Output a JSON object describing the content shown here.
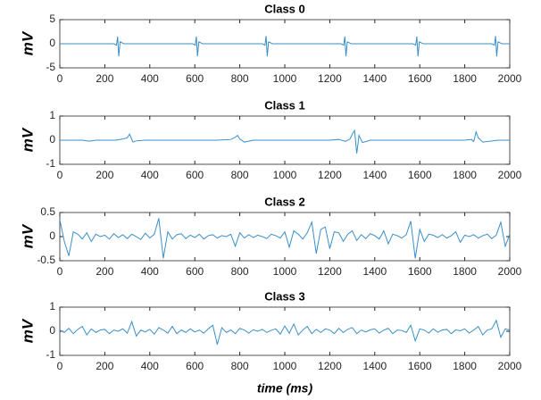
{
  "chart_data": [
    {
      "type": "line",
      "title": "Class 0",
      "ylabel": "mV",
      "color": "#3a8fc9",
      "x": [
        0,
        240,
        252,
        257,
        262,
        268,
        285,
        590,
        602,
        607,
        612,
        618,
        635,
        900,
        912,
        917,
        922,
        928,
        945,
        1250,
        1262,
        1267,
        1272,
        1278,
        1295,
        1570,
        1582,
        1587,
        1592,
        1598,
        1615,
        1920,
        1932,
        1937,
        1942,
        1948,
        1965,
        2000
      ],
      "values": [
        0,
        0,
        -0.3,
        1.5,
        -2.6,
        0.4,
        0,
        0,
        -0.3,
        1.5,
        -2.6,
        0.4,
        0,
        0,
        -0.3,
        1.6,
        -2.6,
        0.4,
        0,
        0,
        -0.3,
        1.5,
        -2.6,
        0.4,
        0,
        0,
        -0.3,
        1.5,
        -2.6,
        0.4,
        0,
        0,
        -0.3,
        1.6,
        -2.6,
        0.4,
        0,
        0
      ],
      "xlim": [
        0,
        2000
      ],
      "xticks": [
        0,
        200,
        400,
        600,
        800,
        1000,
        1200,
        1400,
        1600,
        1800,
        2000
      ],
      "ylim": [
        -5,
        5
      ],
      "yticks": [
        -5,
        0,
        5
      ]
    },
    {
      "type": "line",
      "title": "Class 1",
      "ylabel": "mV",
      "color": "#3a8fc9",
      "x": [
        0,
        100,
        130,
        160,
        250,
        280,
        300,
        310,
        325,
        340,
        380,
        500,
        700,
        760,
        780,
        790,
        800,
        820,
        860,
        1000,
        1200,
        1240,
        1270,
        1290,
        1300,
        1310,
        1320,
        1330,
        1345,
        1380,
        1500,
        1700,
        1800,
        1830,
        1840,
        1850,
        1860,
        1880,
        1950,
        2000
      ],
      "values": [
        0,
        0,
        -0.04,
        0,
        0,
        0.05,
        0.1,
        0.25,
        -0.08,
        -0.03,
        0,
        0,
        0,
        0.03,
        0.12,
        0.2,
        0.05,
        -0.08,
        0,
        0,
        0,
        0.03,
        -0.05,
        0.05,
        0.25,
        0.4,
        -0.55,
        0.2,
        -0.1,
        0,
        0,
        0,
        0,
        0.03,
        -0.05,
        0.35,
        0.1,
        -0.08,
        0,
        0
      ],
      "xlim": [
        0,
        2000
      ],
      "xticks": [
        0,
        200,
        400,
        600,
        800,
        1000,
        1200,
        1400,
        1600,
        1800,
        2000
      ],
      "ylim": [
        -1,
        1
      ],
      "yticks": [
        -1,
        0,
        1
      ]
    },
    {
      "type": "line",
      "title": "Class 2",
      "ylabel": "mV",
      "color": "#3a8fc9",
      "x": [
        0,
        20,
        40,
        60,
        80,
        100,
        120,
        140,
        160,
        180,
        200,
        220,
        240,
        260,
        280,
        300,
        320,
        340,
        360,
        380,
        400,
        420,
        440,
        460,
        480,
        500,
        520,
        540,
        560,
        580,
        600,
        620,
        640,
        660,
        680,
        700,
        720,
        740,
        760,
        780,
        800,
        820,
        840,
        860,
        880,
        900,
        920,
        940,
        960,
        980,
        1000,
        1020,
        1040,
        1060,
        1080,
        1100,
        1120,
        1140,
        1160,
        1180,
        1200,
        1220,
        1240,
        1260,
        1280,
        1300,
        1320,
        1340,
        1360,
        1380,
        1400,
        1420,
        1440,
        1460,
        1480,
        1500,
        1520,
        1540,
        1560,
        1580,
        1600,
        1620,
        1640,
        1660,
        1680,
        1700,
        1720,
        1740,
        1760,
        1780,
        1800,
        1820,
        1840,
        1860,
        1880,
        1900,
        1920,
        1940,
        1960,
        1980,
        2000
      ],
      "values": [
        0.35,
        -0.1,
        -0.4,
        0.1,
        0.05,
        -0.05,
        0.08,
        -0.1,
        0.05,
        0,
        0.03,
        -0.05,
        0.06,
        -0.02,
        0.04,
        -0.04,
        0.05,
        0,
        -0.06,
        0.07,
        -0.03,
        0.05,
        0.38,
        -0.45,
        0.1,
        -0.05,
        0.04,
        0.06,
        -0.04,
        0.03,
        -0.02,
        0.05,
        -0.05,
        0.02,
        0.04,
        -0.03,
        0.02,
        0,
        0.05,
        -0.2,
        0.08,
        -0.03,
        0.04,
        -0.02,
        0.03,
        0,
        -0.04,
        0.05,
        0.02,
        -0.03,
        0.1,
        -0.22,
        0.12,
        0.05,
        -0.05,
        0.08,
        0.3,
        -0.35,
        0.15,
        0.2,
        -0.25,
        0.1,
        0.08,
        -0.1,
        0.05,
        0.12,
        -0.08,
        0.04,
        -0.04,
        0.06,
        0.02,
        -0.05,
        0.12,
        -0.15,
        0.05,
        0.02,
        -0.03,
        0.04,
        0.32,
        -0.45,
        0.15,
        -0.1,
        0.05,
        0.03,
        -0.02,
        0.04,
        -0.03,
        0.02,
        0.1,
        -0.12,
        0.03,
        0,
        0.04,
        -0.03,
        0.02,
        0.05,
        -0.04,
        0.03,
        0.3,
        -0.2,
        0.05
      ],
      "xlim": [
        0,
        2000
      ],
      "xticks": [
        0,
        200,
        400,
        600,
        800,
        1000,
        1200,
        1400,
        1600,
        1800,
        2000
      ],
      "ylim": [
        -0.5,
        0.5
      ],
      "yticks": [
        -0.5,
        0,
        0.5
      ]
    },
    {
      "type": "line",
      "title": "Class 3",
      "ylabel": "mV",
      "xlabel": "time (ms)",
      "color": "#3a8fc9",
      "x": [
        0,
        20,
        40,
        60,
        80,
        100,
        120,
        140,
        160,
        180,
        200,
        220,
        240,
        260,
        280,
        300,
        320,
        340,
        360,
        380,
        400,
        420,
        440,
        460,
        480,
        500,
        520,
        540,
        560,
        580,
        600,
        620,
        640,
        660,
        680,
        700,
        720,
        740,
        760,
        780,
        800,
        820,
        840,
        860,
        880,
        900,
        920,
        940,
        960,
        980,
        1000,
        1020,
        1040,
        1060,
        1080,
        1100,
        1120,
        1140,
        1160,
        1180,
        1200,
        1220,
        1240,
        1260,
        1280,
        1300,
        1320,
        1340,
        1360,
        1380,
        1400,
        1420,
        1440,
        1460,
        1480,
        1500,
        1520,
        1540,
        1560,
        1580,
        1600,
        1620,
        1640,
        1660,
        1680,
        1700,
        1720,
        1740,
        1760,
        1780,
        1800,
        1820,
        1840,
        1860,
        1880,
        1900,
        1920,
        1940,
        1960,
        1980,
        2000
      ],
      "values": [
        0.05,
        -0.05,
        0.12,
        -0.1,
        0.08,
        0.2,
        -0.15,
        0.1,
        -0.05,
        0.05,
        0.08,
        -0.1,
        0.05,
        0,
        0.1,
        -0.08,
        0.4,
        -0.2,
        0.05,
        -0.03,
        0.08,
        -0.12,
        0.15,
        0.05,
        -0.08,
        0.2,
        -0.1,
        0.05,
        -0.05,
        0.1,
        -0.03,
        0.05,
        -0.08,
        0.1,
        0.25,
        -0.55,
        0.15,
        -0.05,
        0.05,
        -0.1,
        0.12,
        0.05,
        -0.08,
        0.06,
        0,
        0.08,
        -0.05,
        0.04,
        0.1,
        -0.12,
        0.22,
        -0.08,
        0.3,
        -0.15,
        0.05,
        0.2,
        -0.1,
        0.08,
        -0.05,
        0.1,
        0.05,
        -0.1,
        0.12,
        -0.05,
        0.08,
        0.15,
        -0.1,
        0.05,
        -0.03,
        0.06,
        0.1,
        -0.08,
        0.05,
        0.12,
        -0.1,
        0.05,
        0.03,
        -0.05,
        0.25,
        -0.4,
        0.1,
        0.05,
        -0.08,
        0.1,
        -0.04,
        0.05,
        0.08,
        -0.1,
        0.06,
        0.02,
        0.1,
        -0.08,
        0.05,
        0.2,
        -0.15,
        0.05,
        0.1,
        0.45,
        -0.25,
        0.1,
        0.05
      ],
      "xlim": [
        0,
        2000
      ],
      "xticks": [
        0,
        200,
        400,
        600,
        800,
        1000,
        1200,
        1400,
        1600,
        1800,
        2000
      ],
      "ylim": [
        -1,
        1
      ],
      "yticks": [
        -1,
        0,
        1
      ]
    }
  ]
}
